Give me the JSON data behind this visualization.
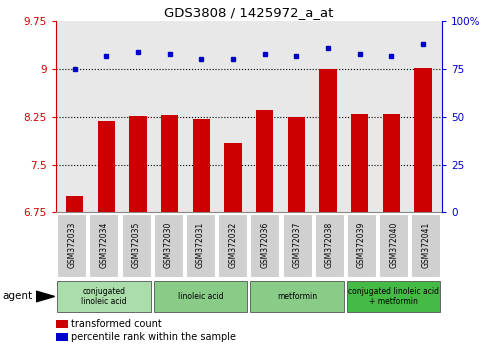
{
  "title": "GDS3808 / 1425972_a_at",
  "samples": [
    "GSM372033",
    "GSM372034",
    "GSM372035",
    "GSM372030",
    "GSM372031",
    "GSM372032",
    "GSM372036",
    "GSM372037",
    "GSM372038",
    "GSM372039",
    "GSM372040",
    "GSM372041"
  ],
  "bar_values": [
    7.0,
    8.18,
    8.27,
    8.28,
    8.22,
    7.84,
    8.35,
    8.25,
    9.0,
    8.3,
    8.3,
    9.02
  ],
  "dot_values": [
    75,
    82,
    84,
    83,
    80,
    80,
    83,
    82,
    86,
    83,
    82,
    88
  ],
  "ylim_left": [
    6.75,
    9.75
  ],
  "ylim_right": [
    0,
    100
  ],
  "yticks_left": [
    6.75,
    7.5,
    8.25,
    9.0,
    9.75
  ],
  "yticks_right": [
    0,
    25,
    50,
    75,
    100
  ],
  "ytick_labels_left": [
    "6.75",
    "7.5",
    "8.25",
    "9",
    "9.75"
  ],
  "ytick_labels_right": [
    "0",
    "25",
    "50",
    "75",
    "100%"
  ],
  "hlines": [
    7.5,
    8.25,
    9.0
  ],
  "bar_color": "#cc0000",
  "dot_color": "#0000cc",
  "agent_groups": [
    {
      "label": "conjugated\nlinoleic acid",
      "start": 0,
      "end": 3,
      "color": "#aaddaa"
    },
    {
      "label": "linoleic acid",
      "start": 3,
      "end": 6,
      "color": "#88cc88"
    },
    {
      "label": "metformin",
      "start": 6,
      "end": 9,
      "color": "#88cc88"
    },
    {
      "label": "conjugated linoleic acid\n+ metformin",
      "start": 9,
      "end": 12,
      "color": "#44bb44"
    }
  ],
  "legend_items": [
    {
      "color": "#cc0000",
      "label": "transformed count"
    },
    {
      "color": "#0000cc",
      "label": "percentile rank within the sample"
    }
  ],
  "agent_label": "agent",
  "plot_bg": "#e8e8e8",
  "sample_bg": "#d0d0d0",
  "bar_width": 0.55,
  "figsize": [
    4.83,
    3.54
  ],
  "dpi": 100
}
